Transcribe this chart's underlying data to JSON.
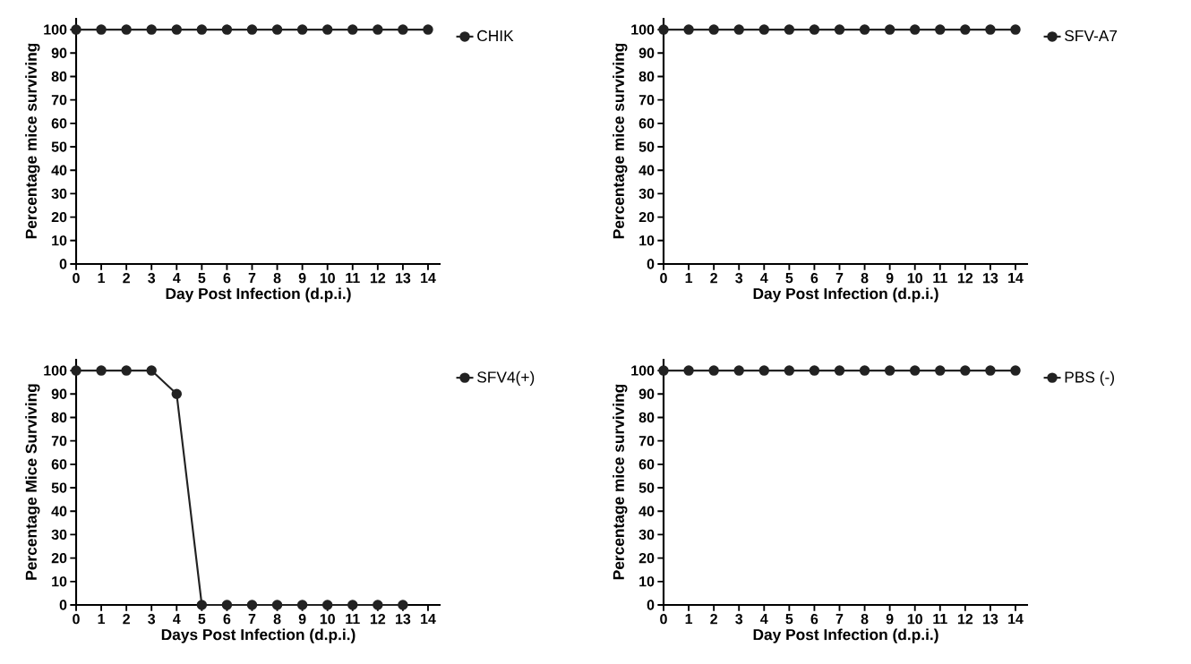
{
  "chart_data": [
    {
      "type": "line",
      "xlabel": "Day Post Infection (d.p.i.)",
      "ylabel": "Percentage mice surviving",
      "x": [
        0,
        1,
        2,
        3,
        4,
        5,
        6,
        7,
        8,
        9,
        10,
        11,
        12,
        13,
        14
      ],
      "series": [
        {
          "name": "CHIK",
          "color": "#222222",
          "values": [
            100,
            100,
            100,
            100,
            100,
            100,
            100,
            100,
            100,
            100,
            100,
            100,
            100,
            100,
            100
          ]
        }
      ],
      "xlim": [
        0,
        14.5
      ],
      "ylim": [
        0,
        105
      ],
      "xticks": [
        0,
        1,
        2,
        3,
        4,
        5,
        6,
        7,
        8,
        9,
        10,
        11,
        12,
        13,
        14
      ],
      "yticks": [
        0,
        10,
        20,
        30,
        40,
        50,
        60,
        70,
        80,
        90,
        100
      ],
      "marker": "circle",
      "legend": "top right"
    },
    {
      "type": "line",
      "xlabel": "Day Post Infection (d.p.i.)",
      "ylabel": "Percentage mice surviving",
      "x": [
        0,
        1,
        2,
        3,
        4,
        5,
        6,
        7,
        8,
        9,
        10,
        11,
        12,
        13,
        14
      ],
      "series": [
        {
          "name": "SFV-A7",
          "color": "#222222",
          "values": [
            100,
            100,
            100,
            100,
            100,
            100,
            100,
            100,
            100,
            100,
            100,
            100,
            100,
            100,
            100
          ]
        }
      ],
      "xlim": [
        0,
        14.5
      ],
      "ylim": [
        0,
        105
      ],
      "xticks": [
        0,
        1,
        2,
        3,
        4,
        5,
        6,
        7,
        8,
        9,
        10,
        11,
        12,
        13,
        14
      ],
      "yticks": [
        0,
        10,
        20,
        30,
        40,
        50,
        60,
        70,
        80,
        90,
        100
      ],
      "marker": "circle",
      "legend": "top right"
    },
    {
      "type": "line",
      "xlabel": "Days Post Infection (d.p.i.)",
      "ylabel": "Percentage Mice Surviving",
      "x": [
        0,
        1,
        2,
        3,
        4,
        5,
        6,
        7,
        8,
        9,
        10,
        11,
        12,
        13
      ],
      "series": [
        {
          "name": "SFV4(+)",
          "color": "#222222",
          "values": [
            100,
            100,
            100,
            100,
            90,
            0,
            0,
            0,
            0,
            0,
            0,
            0,
            0,
            0
          ]
        }
      ],
      "xlim": [
        0,
        14.5
      ],
      "ylim": [
        0,
        105
      ],
      "xticks": [
        0,
        1,
        2,
        3,
        4,
        5,
        6,
        7,
        8,
        9,
        10,
        11,
        12,
        13,
        14
      ],
      "yticks": [
        0,
        10,
        20,
        30,
        40,
        50,
        60,
        70,
        80,
        90,
        100
      ],
      "marker": "circle",
      "legend": "top right"
    },
    {
      "type": "line",
      "xlabel": "Day Post Infection (d.p.i.)",
      "ylabel": "Percentage mice surviving",
      "x": [
        0,
        1,
        2,
        3,
        4,
        5,
        6,
        7,
        8,
        9,
        10,
        11,
        12,
        13,
        14
      ],
      "series": [
        {
          "name": "PBS (-)",
          "color": "#222222",
          "values": [
            100,
            100,
            100,
            100,
            100,
            100,
            100,
            100,
            100,
            100,
            100,
            100,
            100,
            100,
            100
          ]
        }
      ],
      "xlim": [
        0,
        14.5
      ],
      "ylim": [
        0,
        105
      ],
      "xticks": [
        0,
        1,
        2,
        3,
        4,
        5,
        6,
        7,
        8,
        9,
        10,
        11,
        12,
        13,
        14
      ],
      "yticks": [
        0,
        10,
        20,
        30,
        40,
        50,
        60,
        70,
        80,
        90,
        100
      ],
      "marker": "circle",
      "legend": "top right"
    }
  ]
}
